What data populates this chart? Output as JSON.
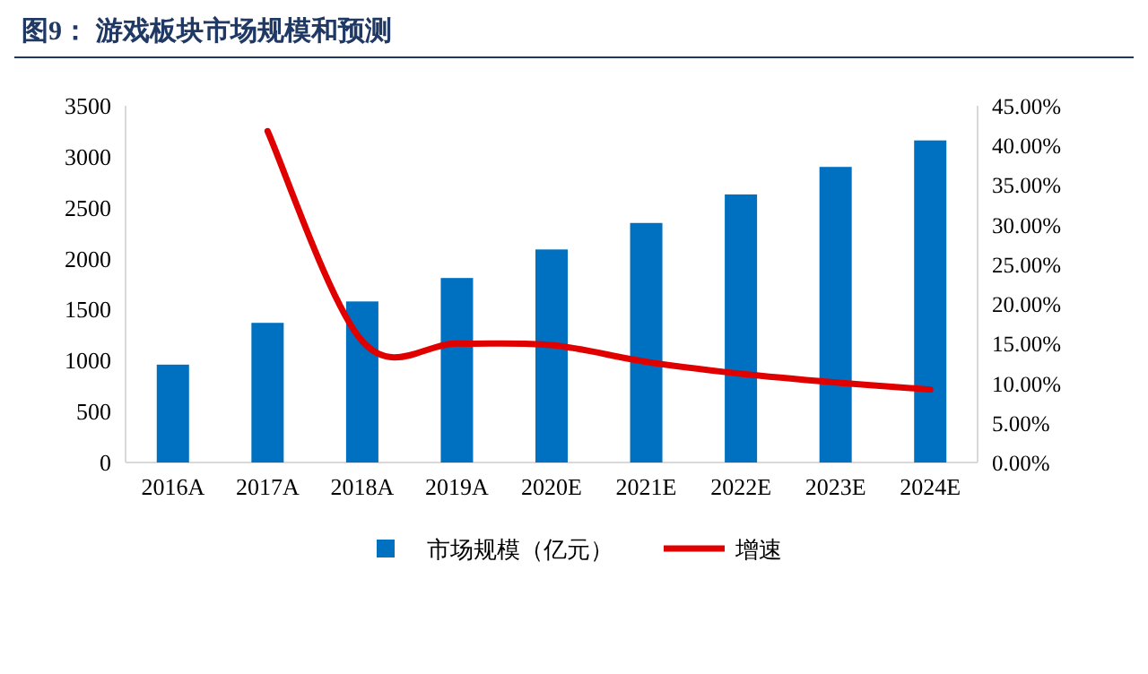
{
  "chart_data": {
    "type": "bar",
    "title": "图9：  游戏板块市场规模和预测",
    "categories": [
      "2016A",
      "2017A",
      "2018A",
      "2019A",
      "2020E",
      "2021E",
      "2022E",
      "2023E",
      "2024E"
    ],
    "series": [
      {
        "name": "市场规模（亿元）",
        "color": "#0070c0",
        "values": [
          960,
          1370,
          1580,
          1810,
          2090,
          2350,
          2630,
          2900,
          3160
        ]
      },
      {
        "name": "增速",
        "type": "line",
        "axis": "y2",
        "color": "#e00000",
        "values": [
          null,
          41.8,
          15.3,
          15.0,
          14.8,
          12.7,
          11.2,
          10.1,
          9.2
        ]
      }
    ],
    "ylim": [
      0,
      3500
    ],
    "yticks": [
      0,
      500,
      1000,
      1500,
      2000,
      2500,
      3000,
      3500
    ],
    "y2lim": [
      0,
      45
    ],
    "y2ticks": [
      {
        "value": 0,
        "label": "0.00%"
      },
      {
        "value": 5,
        "label": "5.00%"
      },
      {
        "value": 10,
        "label": "10.00%"
      },
      {
        "value": 15,
        "label": "15.00%"
      },
      {
        "value": 20,
        "label": "20.00%"
      },
      {
        "value": 25,
        "label": "25.00%"
      },
      {
        "value": 30,
        "label": "30.00%"
      },
      {
        "value": 35,
        "label": "35.00%"
      },
      {
        "value": 40,
        "label": "40.00%"
      },
      {
        "value": 45,
        "label": "45.00%"
      }
    ],
    "legend": "bottom"
  }
}
